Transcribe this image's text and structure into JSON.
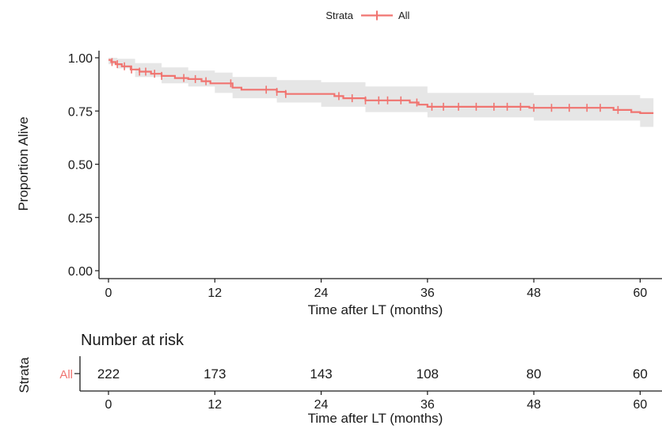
{
  "legend": {
    "title": "Strata",
    "label": "All"
  },
  "chart_data": {
    "type": "line",
    "subtype": "kaplan-meier",
    "ylabel": "Proportion Alive",
    "xlabel": "Time after LT (months)",
    "xticks": [
      0,
      12,
      24,
      36,
      48,
      60
    ],
    "yticks": [
      "0.00",
      "0.25",
      "0.50",
      "0.75",
      "1.00"
    ],
    "xlim": [
      0,
      60
    ],
    "ylim": [
      0,
      1
    ],
    "grid": false,
    "legend_position": "top",
    "series": [
      {
        "name": "All",
        "color": "#f07470",
        "steps": [
          [
            0,
            0.99
          ],
          [
            0.3,
            0.98
          ],
          [
            0.8,
            0.97
          ],
          [
            1.5,
            0.96
          ],
          [
            2.5,
            0.945
          ],
          [
            3.5,
            0.935
          ],
          [
            4.8,
            0.925
          ],
          [
            6,
            0.915
          ],
          [
            7.5,
            0.905
          ],
          [
            9,
            0.9
          ],
          [
            10.5,
            0.89
          ],
          [
            11.5,
            0.88
          ],
          [
            14,
            0.86
          ],
          [
            15,
            0.85
          ],
          [
            19,
            0.84
          ],
          [
            20,
            0.83
          ],
          [
            25.5,
            0.82
          ],
          [
            26.5,
            0.81
          ],
          [
            29,
            0.8
          ],
          [
            34,
            0.79
          ],
          [
            35,
            0.78
          ],
          [
            36,
            0.77
          ],
          [
            47.5,
            0.765
          ],
          [
            57,
            0.755
          ],
          [
            59,
            0.745
          ],
          [
            60,
            0.74
          ]
        ],
        "ci_upper": [
          [
            0,
            1.0
          ],
          [
            1,
            0.995
          ],
          [
            3,
            0.975
          ],
          [
            6,
            0.955
          ],
          [
            9,
            0.94
          ],
          [
            12,
            0.93
          ],
          [
            14,
            0.91
          ],
          [
            19,
            0.895
          ],
          [
            24,
            0.885
          ],
          [
            29,
            0.865
          ],
          [
            36,
            0.835
          ],
          [
            48,
            0.825
          ],
          [
            60,
            0.81
          ]
        ],
        "ci_lower": [
          [
            0,
            0.97
          ],
          [
            1,
            0.95
          ],
          [
            3,
            0.91
          ],
          [
            6,
            0.88
          ],
          [
            9,
            0.865
          ],
          [
            12,
            0.835
          ],
          [
            14,
            0.81
          ],
          [
            19,
            0.79
          ],
          [
            24,
            0.77
          ],
          [
            29,
            0.745
          ],
          [
            36,
            0.72
          ],
          [
            48,
            0.705
          ],
          [
            60,
            0.675
          ]
        ],
        "censor_times": [
          0.4,
          1,
          1.8,
          2.6,
          3.5,
          4.2,
          5.2,
          6,
          8.5,
          9.8,
          11,
          13.8,
          17.8,
          19,
          20,
          26,
          27.5,
          29,
          30.5,
          31.5,
          33,
          34.8,
          36.5,
          37.8,
          39.5,
          41.5,
          43.5,
          45,
          46.5,
          48,
          50,
          52,
          54,
          55.5,
          57.5
        ]
      }
    ]
  },
  "risk_table": {
    "title": "Number at risk",
    "ylabel": "Strata",
    "row_label": "All",
    "xticks": [
      0,
      12,
      24,
      36,
      48,
      60
    ],
    "xlabel": "Time after LT (months)",
    "values": [
      222,
      173,
      143,
      108,
      80,
      60
    ]
  }
}
